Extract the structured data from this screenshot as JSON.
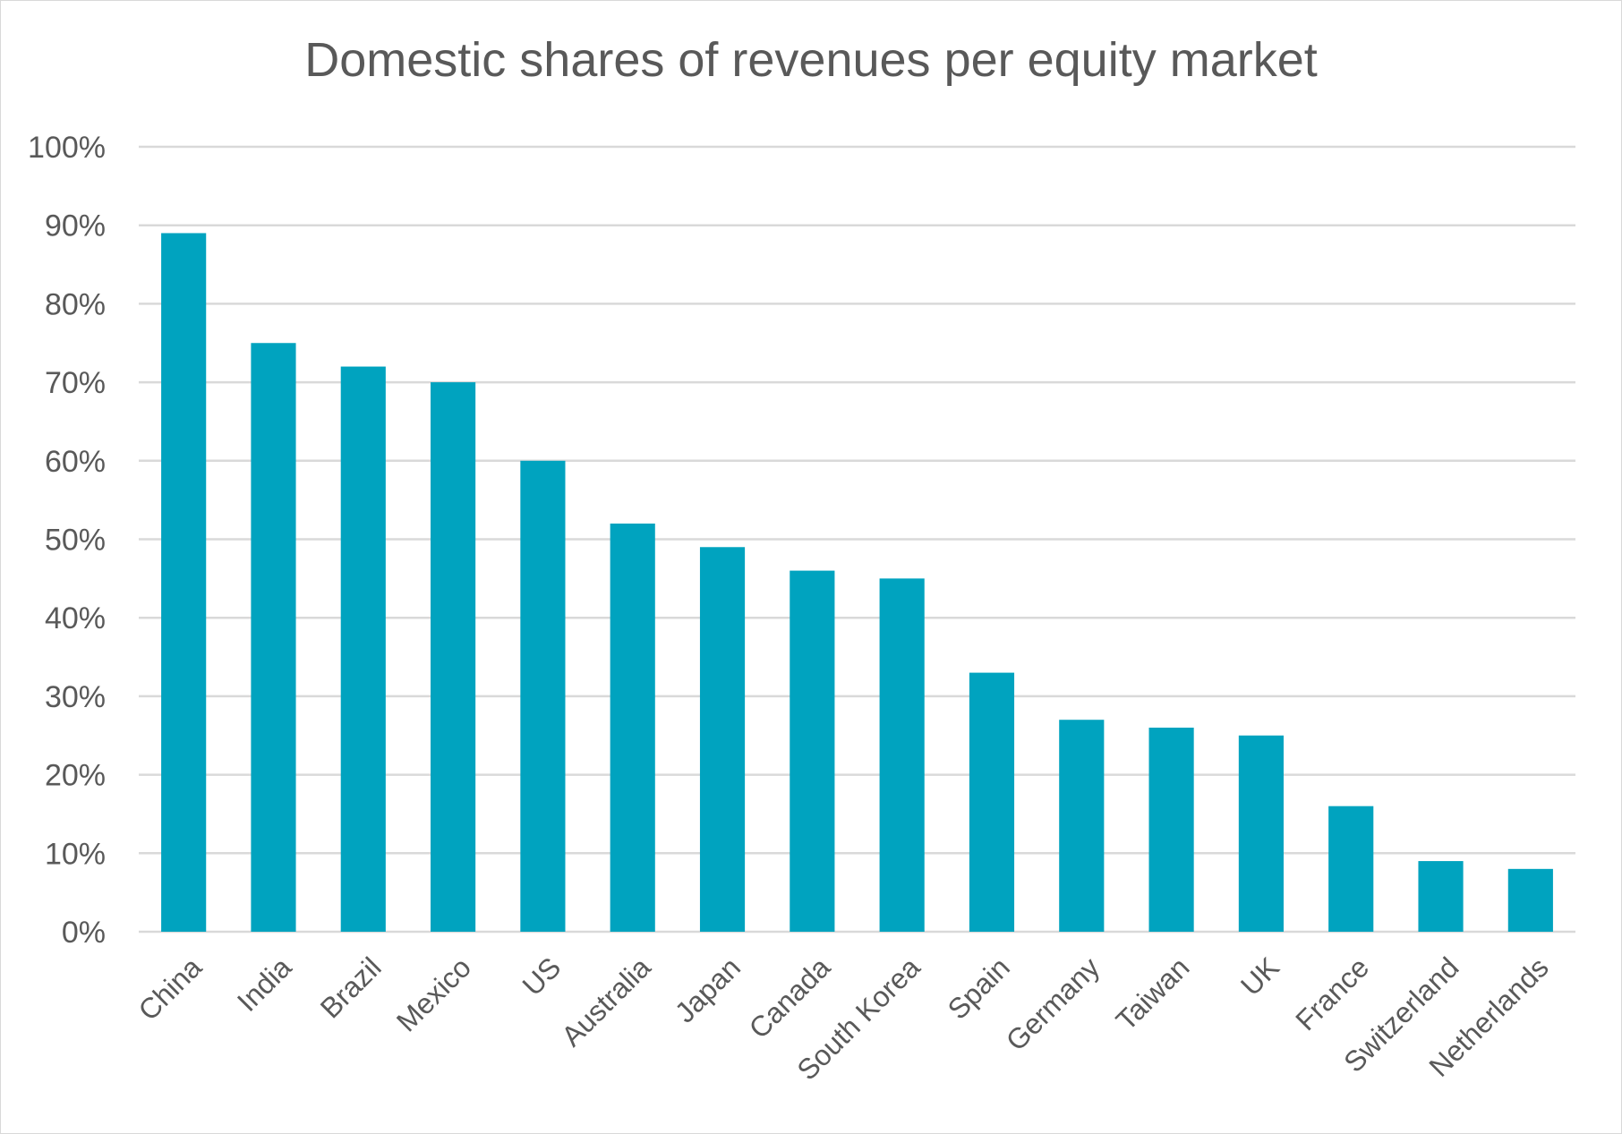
{
  "chart_data": {
    "type": "bar",
    "title": "Domestic shares of revenues per equity market",
    "categories": [
      "China",
      "India",
      "Brazil",
      "Mexico",
      "US",
      "Australia",
      "Japan",
      "Canada",
      "South Korea",
      "Spain",
      "Germany",
      "Taiwan",
      "UK",
      "France",
      "Switzerland",
      "Netherlands"
    ],
    "values": [
      89,
      75,
      72,
      70,
      60,
      52,
      49,
      46,
      45,
      33,
      27,
      26,
      25,
      16,
      9,
      8
    ],
    "ylim": [
      0,
      100
    ],
    "yticks": [
      0,
      10,
      20,
      30,
      40,
      50,
      60,
      70,
      80,
      90,
      100
    ],
    "ytick_labels": [
      "0%",
      "10%",
      "20%",
      "30%",
      "40%",
      "50%",
      "60%",
      "70%",
      "80%",
      "90%",
      "100%"
    ],
    "xlabel": "",
    "ylabel": "",
    "grid": true,
    "legend": false,
    "colors": {
      "bar": "#00A3BF",
      "grid": "#d9d9d9",
      "text": "#595959"
    }
  }
}
